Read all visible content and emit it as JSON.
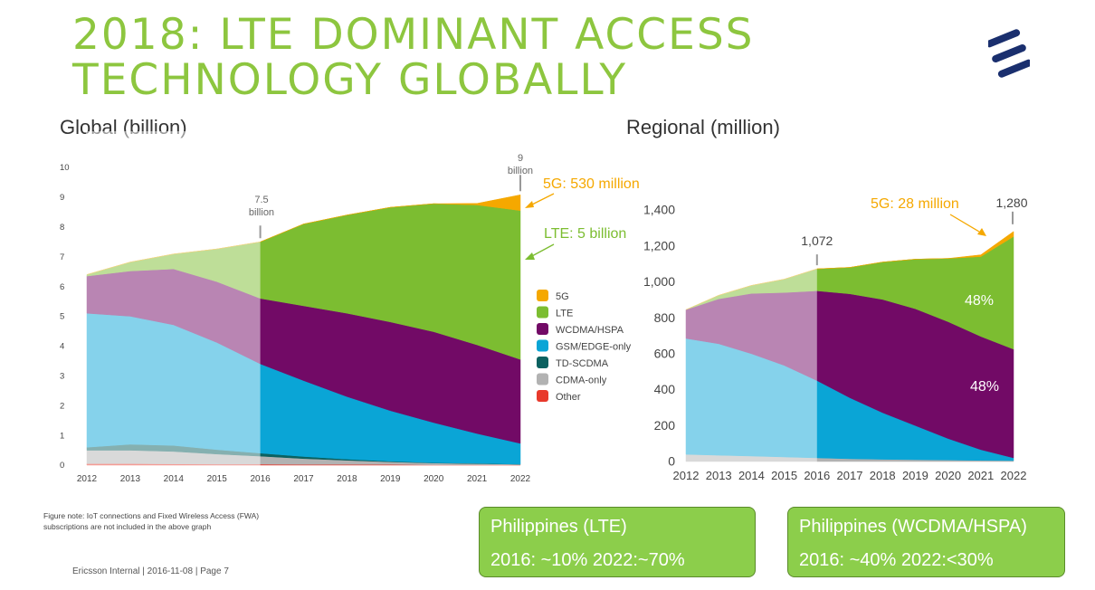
{
  "header": {
    "title_line1": "2018: LTE DOMINANT ACCESS",
    "title_line2": "TECHNOLOGY GLOBALLY"
  },
  "logo": {
    "icon": "ericsson-logo-icon",
    "color": "#1a2f6e"
  },
  "global": {
    "heading": "Global (billion)"
  },
  "regional": {
    "heading": "Regional (million)"
  },
  "colors": {
    "5G": "#f5a800",
    "LTE": "#7cbd31",
    "WCDMA/HSPA": "#720a66",
    "GSM/EDGE-only": "#0aa5d6",
    "TD-SCDMA": "#0b6160",
    "CDMA-only": "#b2b2b2",
    "Other": "#e8392c",
    "accent_green": "#8dc63f"
  },
  "chart_data": [
    {
      "type": "area",
      "stacked": true,
      "title": "Global (billion)",
      "x": [
        2012,
        2013,
        2014,
        2015,
        2016,
        2017,
        2018,
        2019,
        2020,
        2021,
        2022
      ],
      "ylim": [
        0,
        10
      ],
      "yticks": [
        0,
        1,
        2,
        3,
        4,
        5,
        6,
        7,
        8,
        9,
        10
      ],
      "historical_end": 2016,
      "series": [
        {
          "name": "Other",
          "values": [
            0.05,
            0.05,
            0.04,
            0.03,
            0.03,
            0.02,
            0.02,
            0.02,
            0.01,
            0.01,
            0.01
          ]
        },
        {
          "name": "CDMA-only",
          "values": [
            0.45,
            0.45,
            0.42,
            0.34,
            0.27,
            0.2,
            0.14,
            0.09,
            0.06,
            0.04,
            0.02
          ]
        },
        {
          "name": "TD-SCDMA",
          "values": [
            0.1,
            0.2,
            0.2,
            0.15,
            0.1,
            0.07,
            0.04,
            0.02,
            0.01,
            0.01,
            0.0
          ]
        },
        {
          "name": "GSM/EDGE-only",
          "values": [
            4.5,
            4.3,
            4.05,
            3.6,
            3.0,
            2.55,
            2.1,
            1.7,
            1.35,
            1.0,
            0.7
          ]
        },
        {
          "name": "WCDMA/HSPA",
          "values": [
            1.25,
            1.52,
            1.88,
            2.04,
            2.2,
            2.51,
            2.8,
            2.98,
            3.05,
            2.98,
            2.82
          ]
        },
        {
          "name": "LTE",
          "values": [
            0.05,
            0.3,
            0.5,
            1.1,
            1.9,
            2.75,
            3.3,
            3.85,
            4.3,
            4.7,
            5.0
          ]
        },
        {
          "name": "5G",
          "values": [
            0,
            0,
            0,
            0,
            0,
            0,
            0,
            0,
            0,
            0.05,
            0.53
          ]
        }
      ],
      "annotations": [
        {
          "x": 2016,
          "text1": "7.5",
          "text2": "billion"
        },
        {
          "x": 2022,
          "text1": "9",
          "text2": "billion"
        },
        {
          "text": "5G:  530 million",
          "color": "#f5a800"
        },
        {
          "text": "LTE:  5 billion",
          "color": "#7cbd31"
        }
      ],
      "legend": {
        "position": "right",
        "items": [
          "5G",
          "LTE",
          "WCDMA/HSPA",
          "GSM/EDGE-only",
          "TD-SCDMA",
          "CDMA-only",
          "Other"
        ]
      }
    },
    {
      "type": "area",
      "stacked": true,
      "title": "Regional (million)",
      "x": [
        2012,
        2013,
        2014,
        2015,
        2016,
        2017,
        2018,
        2019,
        2020,
        2021,
        2022
      ],
      "ylim": [
        0,
        1400
      ],
      "yticks": [
        0,
        200,
        400,
        600,
        800,
        1000,
        1200,
        1400
      ],
      "ytick_labels": [
        "0",
        "200",
        "400",
        "600",
        "800",
        "1,000",
        "1,200",
        "1,400"
      ],
      "historical_end": 2016,
      "series": [
        {
          "name": "CDMA-only",
          "values": [
            40,
            35,
            30,
            25,
            20,
            15,
            12,
            10,
            8,
            6,
            5
          ]
        },
        {
          "name": "GSM/EDGE-only",
          "values": [
            645,
            620,
            570,
            510,
            430,
            340,
            260,
            190,
            120,
            60,
            15
          ]
        },
        {
          "name": "WCDMA/HSPA",
          "values": [
            160,
            250,
            335,
            405,
            500,
            578,
            630,
            650,
            650,
            630,
            605
          ]
        },
        {
          "name": "LTE",
          "values": [
            0,
            20,
            45,
            75,
            122,
            147,
            208,
            276,
            352,
            444,
            627
          ]
        },
        {
          "name": "5G",
          "values": [
            0,
            0,
            0,
            0,
            0,
            0,
            0,
            0,
            0,
            10,
            28
          ]
        }
      ],
      "annotations": [
        {
          "x": 2016,
          "text": "1,072"
        },
        {
          "x": 2022,
          "text": "1,280"
        },
        {
          "text": "5G:  28 million",
          "color": "#f5a800"
        },
        {
          "text": "48%",
          "series": "LTE"
        },
        {
          "text": "48%",
          "series": "WCDMA/HSPA"
        }
      ]
    }
  ],
  "note": {
    "line1": "Figure note: IoT connections and Fixed Wireless Access (FWA)",
    "line2": "subscriptions are not included in the above graph"
  },
  "footer": {
    "text": "Ericsson Internal  |  2016-11-08  |  Page 7"
  },
  "callouts": [
    {
      "line1": "Philippines (LTE)",
      "line2": "2016: ~10%  2022:~70%"
    },
    {
      "line1": "Philippines (WCDMA/HSPA)",
      "line2": "2016: ~40%  2022:<30%"
    }
  ]
}
